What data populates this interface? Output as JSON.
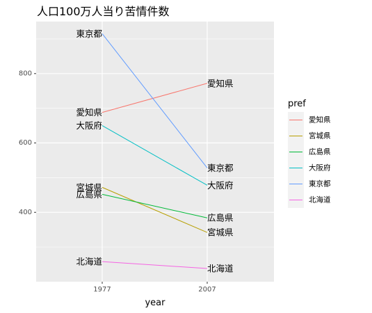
{
  "chart_data": {
    "type": "line",
    "title": "人口100万人当り苦情件数",
    "xlabel": "year",
    "ylabel": "",
    "x": [
      "1977",
      "2007"
    ],
    "ylim": [
      200,
      950
    ],
    "yticks": [
      400,
      600,
      800
    ],
    "grid": true,
    "legend": {
      "title": "pref",
      "position": "right"
    },
    "series": [
      {
        "name": "愛知県",
        "values": [
          688,
          772
        ],
        "color": "#F8766D"
      },
      {
        "name": "宮城県",
        "values": [
          472,
          342
        ],
        "color": "#B79F00"
      },
      {
        "name": "広島県",
        "values": [
          452,
          384
        ],
        "color": "#00BA38"
      },
      {
        "name": "大阪府",
        "values": [
          650,
          478
        ],
        "color": "#00BFC4"
      },
      {
        "name": "東京都",
        "values": [
          915,
          528
        ],
        "color": "#619CFF"
      },
      {
        "name": "北海道",
        "values": [
          258,
          238
        ],
        "color": "#F564E3"
      }
    ]
  }
}
